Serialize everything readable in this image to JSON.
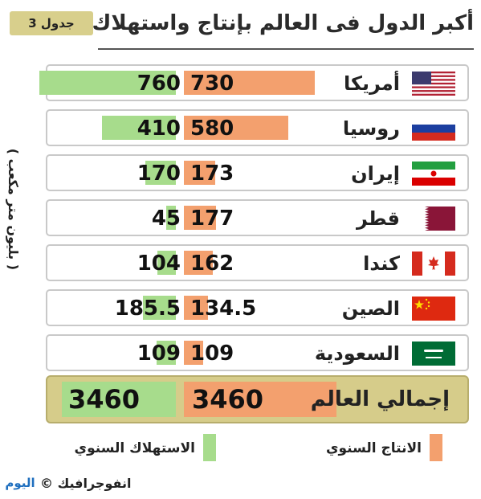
{
  "header": {
    "title": "أكبر الدول فى العالم بإنتاج واستهلاك الغاز",
    "tag": "جدول 3"
  },
  "unit_label": "( بليون متر مكعب )",
  "legend": {
    "production": "الانتاج السنوي",
    "consumption": "الاستهلاك السنوي"
  },
  "total": {
    "label": "إجمالي العالم",
    "production": "3460",
    "consumption": "3460"
  },
  "footer": {
    "source": "انفوجرافيك ©",
    "logo": "اليوم"
  },
  "rows": [
    {
      "country": "أمريكا",
      "flag": "us-flag",
      "production": "730",
      "consumption": "760"
    },
    {
      "country": "روسيا",
      "flag": "russia-flag",
      "production": "580",
      "consumption": "410"
    },
    {
      "country": "إيران",
      "flag": "iran-flag",
      "production": "173",
      "consumption": "170"
    },
    {
      "country": "قطر",
      "flag": "qatar-flag",
      "production": "177",
      "consumption": "45"
    },
    {
      "country": "كندا",
      "flag": "canada-flag",
      "production": "162",
      "consumption": "104"
    },
    {
      "country": "الصين",
      "flag": "china-flag",
      "production": "134.5",
      "consumption": "185.5"
    },
    {
      "country": "السعودية",
      "flag": "saudi-flag",
      "production": "109",
      "consumption": "109"
    }
  ],
  "colors": {
    "production": "#f3a06e",
    "consumption": "#a7dc8c",
    "total_background": "#d6cc8a"
  },
  "chart_data": {
    "type": "bar",
    "title": "أكبر الدول فى العالم بإنتاج واستهلاك الغاز",
    "ylabel": "( بليون متر مكعب )",
    "categories": [
      "أمريكا",
      "روسيا",
      "إيران",
      "قطر",
      "كندا",
      "الصين",
      "السعودية"
    ],
    "series": [
      {
        "name": "الانتاج السنوي",
        "values": [
          730,
          580,
          173,
          177,
          162,
          134.5,
          109
        ]
      },
      {
        "name": "الاستهلاك السنوي",
        "values": [
          760,
          410,
          170,
          45,
          104,
          185.5,
          109
        ]
      }
    ],
    "totals": {
      "label": "إجمالي العالم",
      "production": 3460,
      "consumption": 3460
    },
    "legend_position": "bottom"
  }
}
